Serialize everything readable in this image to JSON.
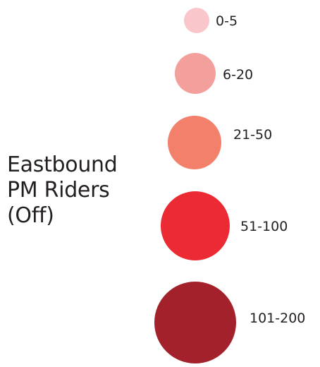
{
  "legend": {
    "title_lines": [
      "Eastbound",
      "PM Riders",
      "(Off)"
    ],
    "bins": [
      {
        "label": "0-5",
        "color": "#f8c6cb"
      },
      {
        "label": "6-20",
        "color": "#f39f9b"
      },
      {
        "label": "21-50",
        "color": "#f2806b"
      },
      {
        "label": "51-100",
        "color": "#ec2a33"
      },
      {
        "label": "101-200",
        "color": "#a3212a"
      }
    ]
  }
}
